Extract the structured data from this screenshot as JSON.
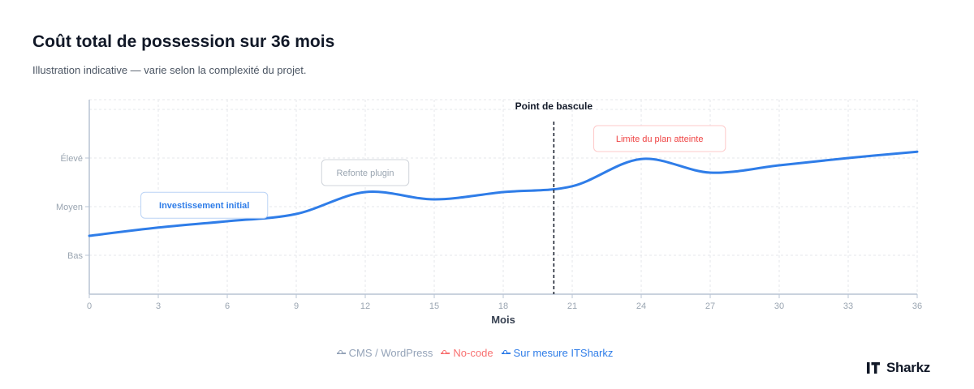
{
  "header": {
    "title": "Coût total de possession sur 36 mois",
    "subtitle": "Illustration indicative — varie selon la complexité du projet."
  },
  "brand": {
    "name": "Sharkz",
    "accent": "#111827"
  },
  "colors": {
    "cms": "#94a3b8",
    "nocode": "#f87171",
    "custom": "#2f7de8",
    "grid": "#e5e7eb",
    "axis": "#b8c4d4",
    "tick": "#9aa5b1"
  },
  "chart_data": {
    "type": "line",
    "title": "Coût total de possession sur 36 mois",
    "xlabel": "Mois",
    "ylabel": "",
    "xlim": [
      0,
      36
    ],
    "x_ticks": [
      0,
      3,
      6,
      9,
      12,
      15,
      18,
      21,
      24,
      27,
      30,
      33,
      36
    ],
    "y_categories": [
      "Bas",
      "Moyen",
      "Élevé"
    ],
    "y_category_values": [
      1,
      2,
      3
    ],
    "ylim": [
      0.2,
      4.2
    ],
    "grid": true,
    "legend_position": "bottom-center",
    "series": [
      {
        "name": "CMS / WordPress",
        "color": "#94a3b8",
        "hidden": true,
        "points": []
      },
      {
        "name": "No-code",
        "color": "#f87171",
        "hidden": true,
        "points": []
      },
      {
        "name": "Sur mesure ITSharkz",
        "color": "#2f7de8",
        "hidden": false,
        "points": [
          [
            0,
            1.4
          ],
          [
            3,
            1.57
          ],
          [
            6,
            1.7
          ],
          [
            9,
            1.85
          ],
          [
            12,
            2.3
          ],
          [
            15,
            2.15
          ],
          [
            18,
            2.3
          ],
          [
            21,
            2.42
          ],
          [
            24,
            2.98
          ],
          [
            27,
            2.7
          ],
          [
            30,
            2.85
          ],
          [
            33,
            3.0
          ],
          [
            36,
            3.13
          ]
        ]
      }
    ],
    "annotations": [
      {
        "type": "vline",
        "x": 20.2,
        "label": "Point de bascule"
      },
      {
        "type": "box",
        "x": 5,
        "y": 2.03,
        "text": "Investissement initial",
        "style": "blue"
      },
      {
        "type": "box",
        "x": 12,
        "y": 2.7,
        "text": "Refonte plugin",
        "style": "gray"
      },
      {
        "type": "box",
        "x": 24.8,
        "y": 3.4,
        "text": "Limite du plan atteinte",
        "style": "red"
      }
    ]
  }
}
